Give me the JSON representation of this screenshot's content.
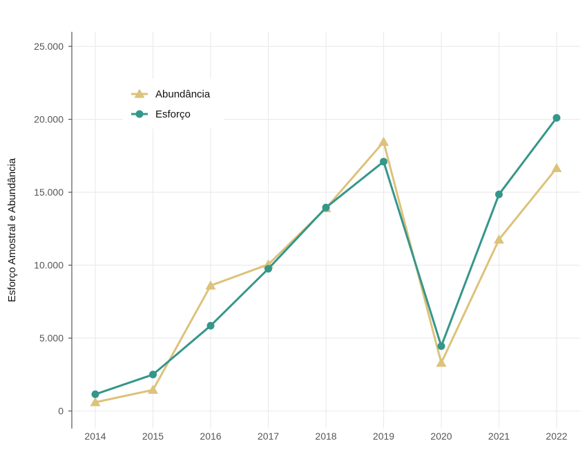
{
  "chart_data": {
    "type": "line",
    "title": "",
    "xlabel": "",
    "ylabel": "Esforço Amostral e Abundância",
    "x": [
      2014,
      2015,
      2016,
      2017,
      2018,
      2019,
      2020,
      2021,
      2022
    ],
    "x_tick_labels": [
      "2014",
      "2015",
      "2016",
      "2017",
      "2018",
      "2019",
      "2020",
      "2021",
      "2022"
    ],
    "ylim": [
      -1200,
      26000
    ],
    "y_ticks": [
      0,
      5000,
      10000,
      15000,
      20000,
      25000
    ],
    "y_tick_labels": [
      "0",
      "5.000",
      "10.000",
      "15.000",
      "20.000",
      "25.000"
    ],
    "grid": true,
    "legend_position": "top-left",
    "series": [
      {
        "name": "Abundância",
        "color": "#dcc27a",
        "marker": "triangle",
        "values": [
          600,
          1450,
          8600,
          10050,
          13900,
          18450,
          3300,
          11750,
          16650
        ]
      },
      {
        "name": "Esforço",
        "color": "#35968a",
        "marker": "circle",
        "values": [
          1150,
          2500,
          5850,
          9750,
          13950,
          17100,
          4450,
          14850,
          20100
        ]
      }
    ]
  }
}
